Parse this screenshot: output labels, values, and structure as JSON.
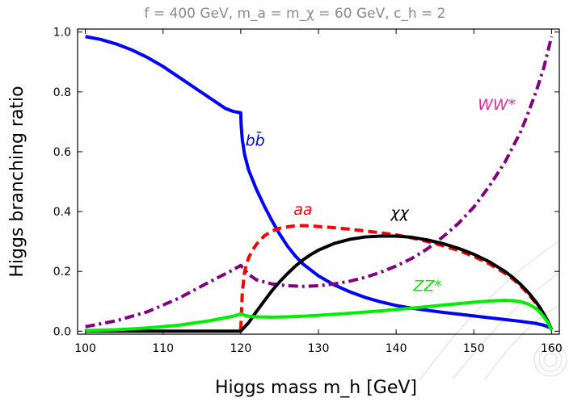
{
  "chart_data": {
    "type": "line",
    "title": "f = 400 GeV, m_a = m_χ = 60 GeV, c_h = 2",
    "xlabel": "Higgs mass m_h [GeV]",
    "ylabel": "Higgs branching ratio",
    "xlim": [
      99,
      161
    ],
    "ylim": [
      -0.01,
      1.01
    ],
    "xticks": [
      100,
      110,
      120,
      130,
      140,
      150,
      160
    ],
    "yticks": [
      0.0,
      0.2,
      0.4,
      0.6,
      0.8,
      1.0
    ],
    "xtick_labels": [
      "100",
      "110",
      "120",
      "130",
      "140",
      "150",
      "160"
    ],
    "ytick_labels": [
      "0.0",
      "0.2",
      "0.4",
      "0.6",
      "0.8",
      "1.0"
    ],
    "grid": false,
    "series": [
      {
        "name": "bb̄",
        "color": "#0000ff",
        "style": "solid",
        "label_anchor": [
          120.6,
          0.62
        ],
        "x": [
          100,
          102,
          104,
          106,
          108,
          110,
          112,
          114,
          116,
          118,
          119,
          120,
          120.05,
          120.2,
          120.5,
          121,
          122,
          123,
          124,
          125,
          126,
          127,
          128,
          130,
          132,
          134,
          136,
          138,
          140,
          142,
          144,
          146,
          148,
          150,
          152,
          154,
          156,
          158,
          159,
          160
        ],
        "y": [
          0.985,
          0.975,
          0.96,
          0.94,
          0.915,
          0.885,
          0.85,
          0.815,
          0.78,
          0.745,
          0.735,
          0.73,
          0.69,
          0.64,
          0.59,
          0.54,
          0.475,
          0.42,
          0.37,
          0.325,
          0.285,
          0.252,
          0.225,
          0.185,
          0.155,
          0.132,
          0.113,
          0.098,
          0.086,
          0.077,
          0.07,
          0.063,
          0.057,
          0.051,
          0.045,
          0.039,
          0.033,
          0.026,
          0.02,
          0.01
        ]
      },
      {
        "name": "WW*",
        "color": "#800080",
        "style": "dashdot",
        "label_anchor": [
          150.5,
          0.74
        ],
        "x": [
          100,
          104,
          108,
          112,
          116,
          119,
          120,
          120.5,
          121,
          122,
          124,
          126,
          128,
          130,
          132,
          134,
          136,
          138,
          140,
          142,
          144,
          146,
          148,
          150,
          152,
          154,
          156,
          157,
          158,
          159,
          160
        ],
        "y": [
          0.015,
          0.035,
          0.065,
          0.11,
          0.165,
          0.205,
          0.22,
          0.205,
          0.19,
          0.172,
          0.158,
          0.152,
          0.15,
          0.152,
          0.158,
          0.167,
          0.18,
          0.197,
          0.218,
          0.243,
          0.275,
          0.315,
          0.36,
          0.415,
          0.485,
          0.565,
          0.665,
          0.73,
          0.8,
          0.88,
          0.985
        ]
      },
      {
        "name": "aa",
        "color": "#ff0000",
        "style": "dashed",
        "label_anchor": [
          126.8,
          0.39
        ],
        "x": [
          120,
          120.2,
          120.5,
          121,
          121.5,
          122,
          123,
          124,
          125,
          126,
          127,
          128,
          129,
          130,
          132,
          134,
          136,
          138,
          140,
          142,
          144,
          146,
          148,
          150,
          152,
          154,
          155,
          156,
          157,
          158,
          158.5,
          159,
          159.5,
          160
        ],
        "y": [
          0.005,
          0.13,
          0.2,
          0.245,
          0.27,
          0.29,
          0.318,
          0.335,
          0.344,
          0.349,
          0.352,
          0.353,
          0.352,
          0.35,
          0.346,
          0.341,
          0.335,
          0.329,
          0.322,
          0.312,
          0.3,
          0.286,
          0.27,
          0.25,
          0.225,
          0.194,
          0.175,
          0.152,
          0.125,
          0.093,
          0.075,
          0.054,
          0.032,
          0.005
        ]
      },
      {
        "name": "χχ",
        "color": "#000000",
        "style": "solid",
        "label_anchor": [
          139.3,
          0.38
        ],
        "x": [
          100,
          110,
          119.9,
          120,
          121,
          122,
          123,
          124,
          125,
          126,
          127,
          128,
          129,
          130,
          132,
          134,
          136,
          138,
          140,
          142,
          144,
          146,
          148,
          150,
          152,
          154,
          155,
          156,
          157,
          158,
          158.5,
          159,
          159.5,
          160
        ],
        "y": [
          0.0,
          0.0,
          0.0,
          0.0,
          0.028,
          0.065,
          0.1,
          0.135,
          0.165,
          0.192,
          0.217,
          0.238,
          0.256,
          0.271,
          0.293,
          0.307,
          0.315,
          0.318,
          0.318,
          0.314,
          0.305,
          0.293,
          0.277,
          0.257,
          0.232,
          0.2,
          0.18,
          0.157,
          0.13,
          0.098,
          0.079,
          0.058,
          0.035,
          0.005
        ]
      },
      {
        "name": "ZZ*",
        "color": "#00ee00",
        "style": "solid",
        "label_anchor": [
          142.2,
          0.135
        ],
        "x": [
          100,
          104,
          108,
          112,
          116,
          119,
          120,
          120.5,
          121,
          122,
          124,
          126,
          128,
          130,
          134,
          138,
          142,
          146,
          150,
          152,
          154,
          155,
          156,
          157,
          158,
          158.5,
          159,
          159.5,
          160
        ],
        "y": [
          0.002,
          0.005,
          0.011,
          0.02,
          0.035,
          0.05,
          0.058,
          0.053,
          0.05,
          0.048,
          0.047,
          0.048,
          0.05,
          0.053,
          0.06,
          0.068,
          0.077,
          0.087,
          0.097,
          0.101,
          0.103,
          0.102,
          0.099,
          0.091,
          0.076,
          0.064,
          0.048,
          0.03,
          0.003
        ]
      }
    ]
  }
}
